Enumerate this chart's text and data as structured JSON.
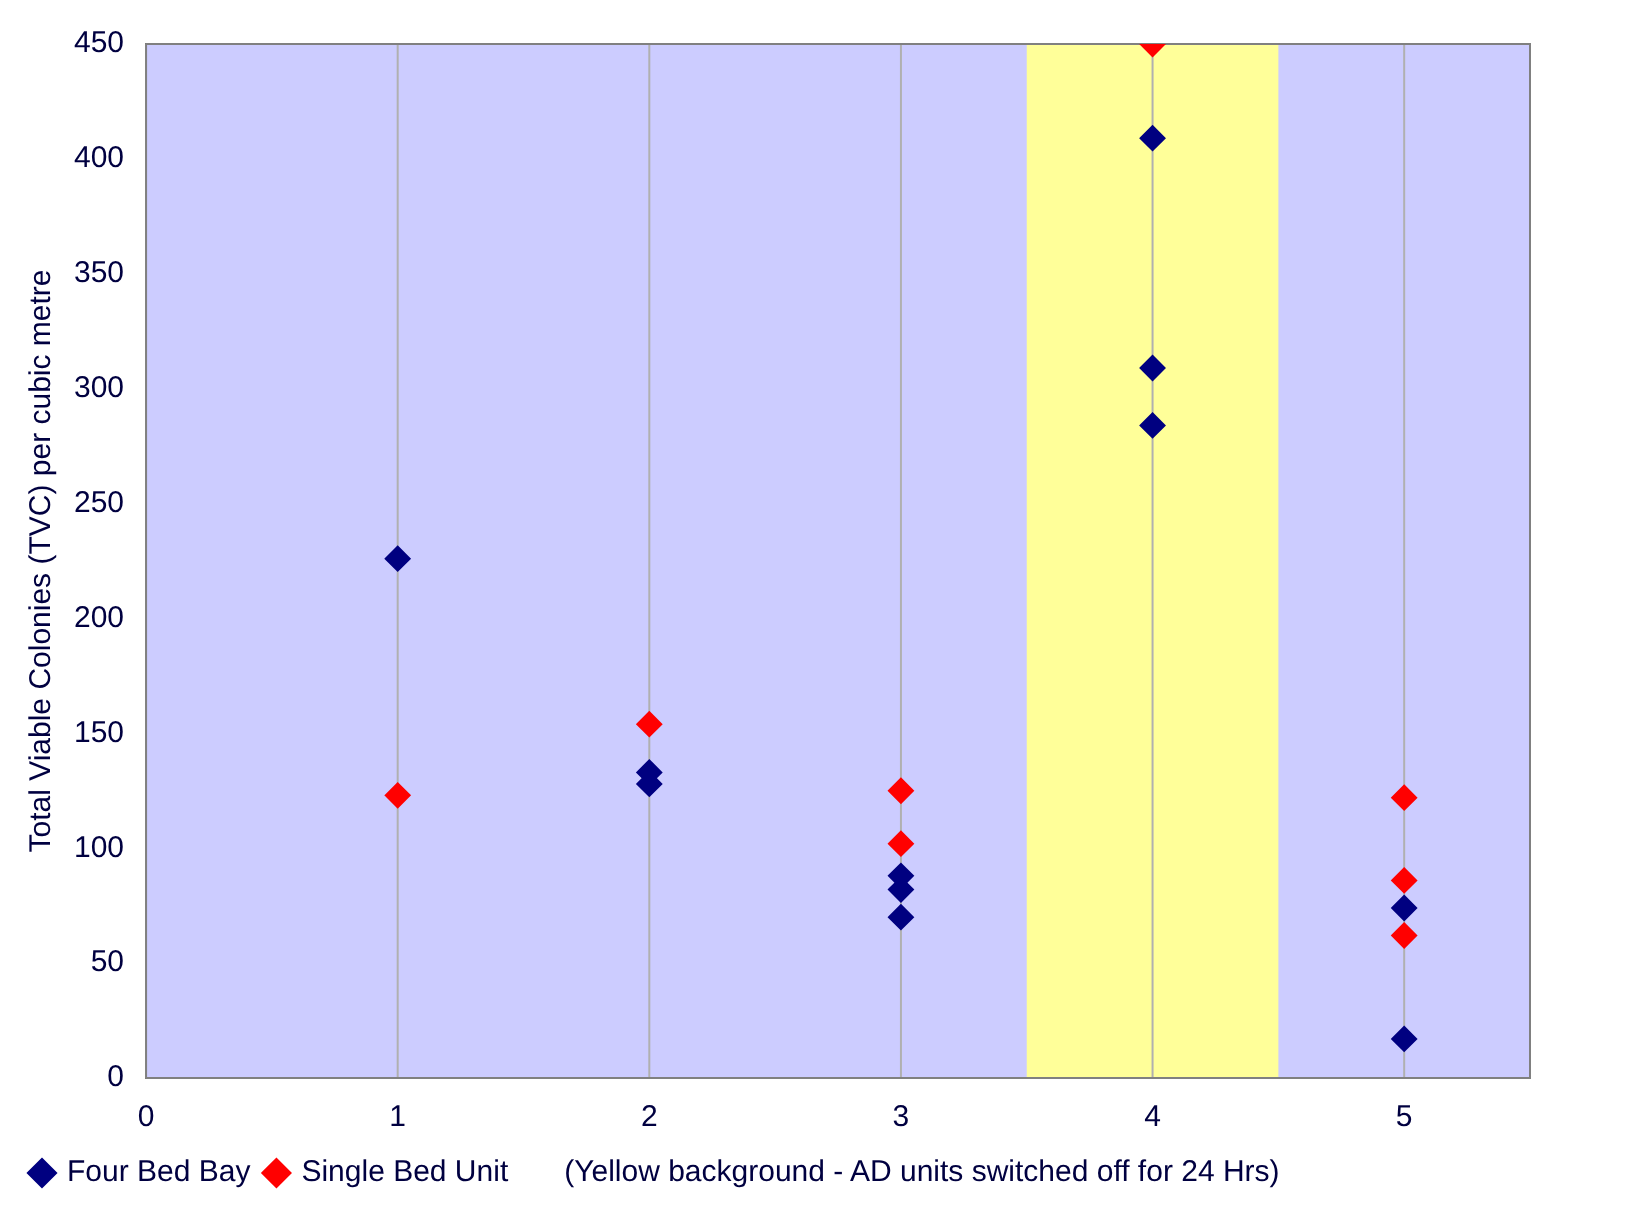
{
  "chart_data": {
    "type": "scatter",
    "ylabel": "Total Viable Colonies (TVC) per cubic metre",
    "xlim": [
      0,
      5.5
    ],
    "xticks": [
      0,
      1,
      2,
      3,
      4,
      5
    ],
    "ylim": [
      0,
      450
    ],
    "yticks": [
      0,
      50,
      100,
      150,
      200,
      250,
      300,
      350,
      400,
      450
    ],
    "grid": "x",
    "legend": "bottom",
    "marker": "diamond",
    "bands": [
      {
        "axis": "x",
        "from": 3.5,
        "to": 4.5,
        "color": "#ffff99"
      }
    ],
    "annotations": [
      "(Yellow background - AD units switched off for 24 Hrs)"
    ],
    "series": [
      {
        "name": "Four Bed Bay",
        "color": "#000080",
        "x": [
          1,
          2,
          2,
          3,
          3,
          3,
          4,
          4,
          4,
          5,
          5
        ],
        "values": [
          226,
          133,
          128,
          88,
          82,
          70,
          409,
          309,
          284,
          74,
          17
        ]
      },
      {
        "name": "Single Bed Unit",
        "color": "#ff0000",
        "x": [
          1,
          2,
          3,
          3,
          4,
          5,
          5,
          5
        ],
        "values": [
          123,
          154,
          125,
          102,
          450,
          122,
          86,
          62
        ]
      }
    ]
  }
}
